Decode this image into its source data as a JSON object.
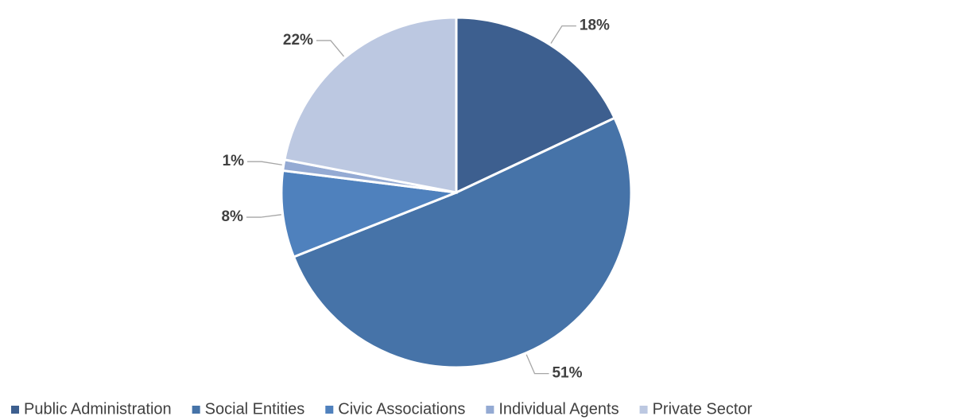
{
  "chart_data": {
    "type": "pie",
    "categories": [
      "Public Administration",
      "Social Entities",
      "Civic Associations",
      "Individual Agents",
      "Private Sector"
    ],
    "values": [
      18,
      51,
      8,
      1,
      22
    ],
    "value_labels": [
      "18%",
      "51%",
      "8%",
      "1%",
      "22%"
    ],
    "colors": [
      "#3d5f8f",
      "#4673a8",
      "#4f81bd",
      "#94aad3",
      "#bcc8e1"
    ],
    "legend": "bottom"
  }
}
